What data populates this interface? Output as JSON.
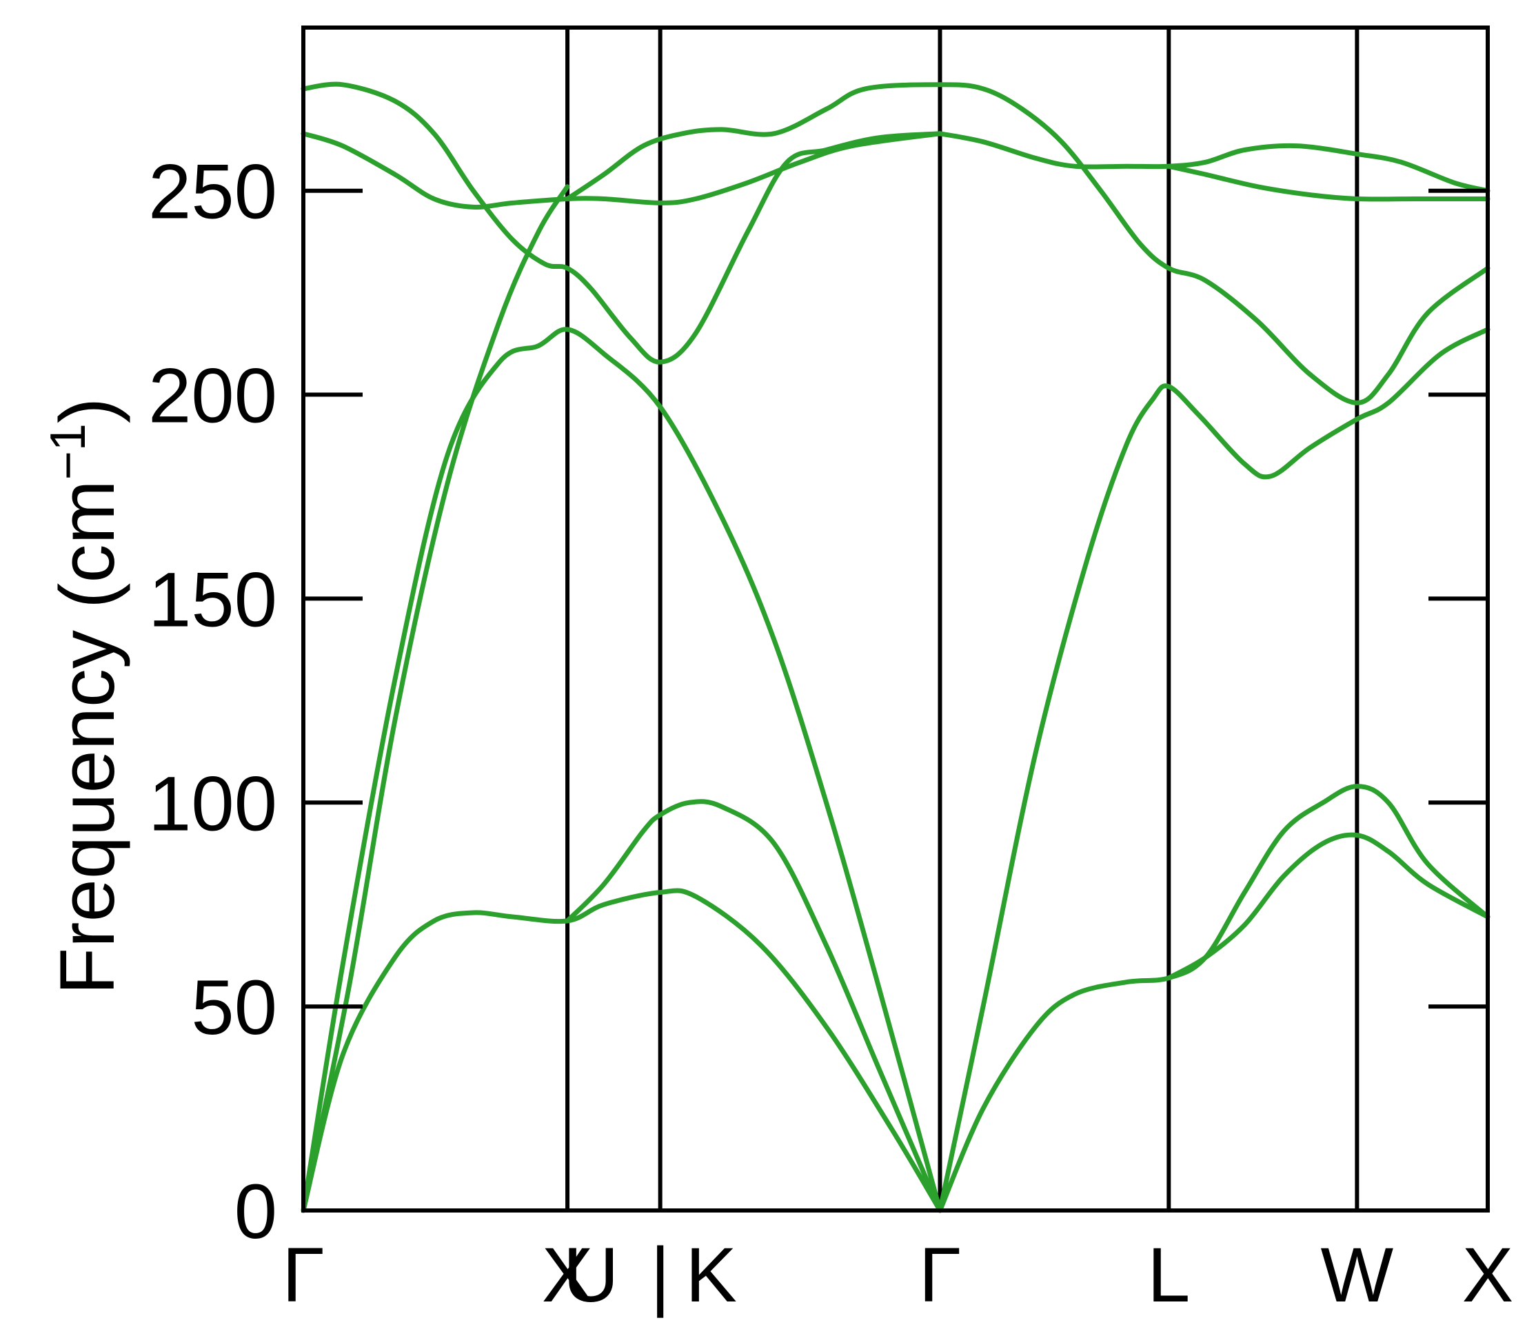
{
  "chart_data": {
    "type": "line",
    "title": "",
    "xlabel": "",
    "ylabel": "Frequency (cm⁻¹)",
    "ylabel_parts": {
      "prefix": "Frequency (cm",
      "sup": "−1",
      "suffix": ")"
    },
    "ylim": [
      0,
      290
    ],
    "yticks": [
      0,
      50,
      100,
      150,
      200,
      250
    ],
    "xlim": [
      0,
      9.06
    ],
    "high_symmetry_points": [
      {
        "label": "Γ",
        "x": 0
      },
      {
        "label": "X",
        "x": 2.02
      },
      {
        "label": "U",
        "x": 2.2
      },
      {
        "label": "|",
        "x": 2.73
      },
      {
        "label": "K",
        "x": 3.12
      },
      {
        "label": "Γ",
        "x": 4.87
      },
      {
        "label": "L",
        "x": 6.62
      },
      {
        "label": "W",
        "x": 8.06
      },
      {
        "label": "X",
        "x": 9.06
      }
    ],
    "vertical_lines": [
      2.02,
      2.73,
      4.87,
      6.62,
      8.06
    ],
    "grid": false,
    "legend": "none",
    "line_color": "#2ca02c",
    "axis_color": "#000000",
    "series": [
      {
        "points": [
          [
            0,
            0
          ],
          [
            0.35,
            55
          ],
          [
            0.7,
            120
          ],
          [
            1.1,
            178
          ],
          [
            1.5,
            218
          ],
          [
            1.8,
            240
          ],
          [
            2.02,
            251
          ]
        ]
      },
      {
        "points": [
          [
            0,
            0
          ],
          [
            0.3,
            38
          ],
          [
            0.7,
            62
          ],
          [
            1.0,
            71
          ],
          [
            1.3,
            73
          ],
          [
            1.6,
            72
          ],
          [
            2.02,
            71
          ],
          [
            2.3,
            75
          ],
          [
            2.73,
            78
          ],
          [
            3.0,
            77
          ],
          [
            3.5,
            65
          ],
          [
            4.0,
            45
          ],
          [
            4.5,
            20
          ],
          [
            4.87,
            0
          ]
        ]
      },
      {
        "points": [
          [
            0,
            0
          ],
          [
            0.3,
            60
          ],
          [
            0.7,
            130
          ],
          [
            1.1,
            185
          ],
          [
            1.5,
            208
          ],
          [
            1.8,
            212
          ],
          [
            2.02,
            216
          ],
          [
            2.3,
            210
          ],
          [
            2.73,
            197
          ],
          [
            3.2,
            170
          ],
          [
            3.6,
            140
          ],
          [
            4.0,
            100
          ],
          [
            4.4,
            55
          ],
          [
            4.87,
            0
          ]
        ]
      },
      {
        "points": [
          [
            2.02,
            71
          ],
          [
            2.3,
            80
          ],
          [
            2.6,
            93
          ],
          [
            2.73,
            97
          ],
          [
            2.95,
            100
          ],
          [
            3.2,
            99
          ],
          [
            3.6,
            90
          ],
          [
            4.0,
            65
          ],
          [
            4.4,
            35
          ],
          [
            4.87,
            0
          ]
        ]
      },
      {
        "points": [
          [
            0,
            275
          ],
          [
            0.3,
            276
          ],
          [
            0.7,
            272
          ],
          [
            1.0,
            264
          ],
          [
            1.3,
            250
          ],
          [
            1.6,
            238
          ],
          [
            1.85,
            232
          ],
          [
            2.02,
            231
          ],
          [
            2.2,
            226
          ],
          [
            2.5,
            214
          ],
          [
            2.73,
            208
          ],
          [
            3.0,
            215
          ],
          [
            3.4,
            240
          ],
          [
            3.7,
            257
          ],
          [
            4.0,
            260
          ],
          [
            4.4,
            263
          ],
          [
            4.87,
            264
          ]
        ]
      },
      {
        "points": [
          [
            0,
            264
          ],
          [
            0.3,
            261
          ],
          [
            0.7,
            254
          ],
          [
            1.0,
            248
          ],
          [
            1.3,
            246
          ],
          [
            1.6,
            247
          ],
          [
            2.02,
            248
          ],
          [
            2.3,
            248
          ],
          [
            2.73,
            247
          ],
          [
            3.0,
            248
          ],
          [
            3.4,
            252
          ],
          [
            3.8,
            257
          ],
          [
            4.2,
            261
          ],
          [
            4.87,
            264
          ]
        ]
      },
      {
        "points": [
          [
            2.02,
            248
          ],
          [
            2.3,
            254
          ],
          [
            2.6,
            261
          ],
          [
            2.9,
            264
          ],
          [
            3.2,
            265
          ],
          [
            3.6,
            264
          ],
          [
            4.0,
            270
          ],
          [
            4.3,
            275
          ],
          [
            4.87,
            276
          ],
          [
            5.2,
            275
          ],
          [
            5.5,
            270
          ],
          [
            5.8,
            262
          ],
          [
            6.1,
            250
          ],
          [
            6.4,
            237
          ],
          [
            6.62,
            231
          ],
          [
            6.9,
            228
          ],
          [
            7.3,
            218
          ],
          [
            7.7,
            205
          ],
          [
            8.06,
            198
          ],
          [
            8.3,
            205
          ],
          [
            8.6,
            220
          ],
          [
            9.06,
            231
          ]
        ]
      },
      {
        "points": [
          [
            4.87,
            264
          ],
          [
            5.2,
            262
          ],
          [
            5.6,
            258
          ],
          [
            5.9,
            256
          ],
          [
            6.3,
            256
          ],
          [
            6.62,
            256
          ],
          [
            6.9,
            257
          ],
          [
            7.2,
            260
          ],
          [
            7.6,
            261
          ],
          [
            8.06,
            259
          ],
          [
            8.4,
            257
          ],
          [
            8.8,
            252
          ],
          [
            9.06,
            250
          ]
        ]
      },
      {
        "points": [
          [
            6.62,
            256
          ],
          [
            6.9,
            254
          ],
          [
            7.3,
            251
          ],
          [
            7.7,
            249
          ],
          [
            8.06,
            248
          ],
          [
            8.5,
            248
          ],
          [
            9.06,
            248
          ]
        ]
      },
      {
        "points": [
          [
            4.87,
            0
          ],
          [
            5.2,
            50
          ],
          [
            5.6,
            112
          ],
          [
            6.0,
            160
          ],
          [
            6.3,
            188
          ],
          [
            6.5,
            199
          ],
          [
            6.62,
            202
          ],
          [
            6.85,
            195
          ],
          [
            7.2,
            183
          ],
          [
            7.4,
            180
          ],
          [
            7.7,
            187
          ],
          [
            8.06,
            194
          ],
          [
            8.3,
            198
          ],
          [
            8.7,
            210
          ],
          [
            9.06,
            216
          ]
        ]
      },
      {
        "points": [
          [
            4.87,
            0
          ],
          [
            5.2,
            25
          ],
          [
            5.6,
            45
          ],
          [
            5.9,
            53
          ],
          [
            6.3,
            56
          ],
          [
            6.62,
            57
          ],
          [
            6.9,
            62
          ],
          [
            7.2,
            78
          ],
          [
            7.5,
            93
          ],
          [
            7.8,
            100
          ],
          [
            8.06,
            104
          ],
          [
            8.3,
            100
          ],
          [
            8.6,
            85
          ],
          [
            9.06,
            72
          ]
        ]
      },
      {
        "points": [
          [
            6.62,
            57
          ],
          [
            6.9,
            62
          ],
          [
            7.2,
            70
          ],
          [
            7.5,
            82
          ],
          [
            7.8,
            90
          ],
          [
            8.06,
            92
          ],
          [
            8.3,
            88
          ],
          [
            8.6,
            80
          ],
          [
            9.06,
            72
          ]
        ]
      }
    ]
  }
}
